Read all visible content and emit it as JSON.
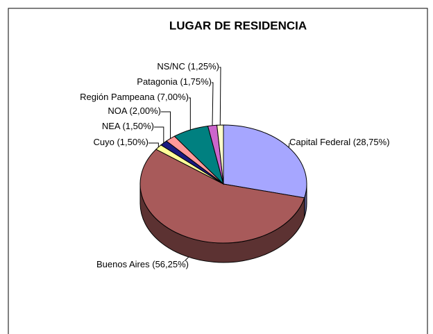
{
  "chart_data": {
    "type": "pie3d",
    "title": "LUGAR DE RESIDENCIA",
    "categories": [
      "Capital Federal",
      "Buenos Aires",
      "Cuyo",
      "NEA",
      "NOA",
      "Región Pampeana",
      "Patagonia",
      "NS/NC"
    ],
    "values": [
      28.75,
      56.25,
      1.5,
      1.5,
      2.0,
      7.0,
      1.75,
      1.25
    ],
    "value_labels": [
      "(28,75%)",
      "(56,25%)",
      "(1,50%)",
      "(1,50%)",
      "(2,00%)",
      "(7,00%)",
      "(1,75%)",
      "(1,25%)"
    ],
    "colors": [
      "#a6a6ff",
      "#a85a5a",
      "#ffff99",
      "#1a1a80",
      "#ff9999",
      "#008080",
      "#cc66cc",
      "#ffffcc"
    ]
  }
}
